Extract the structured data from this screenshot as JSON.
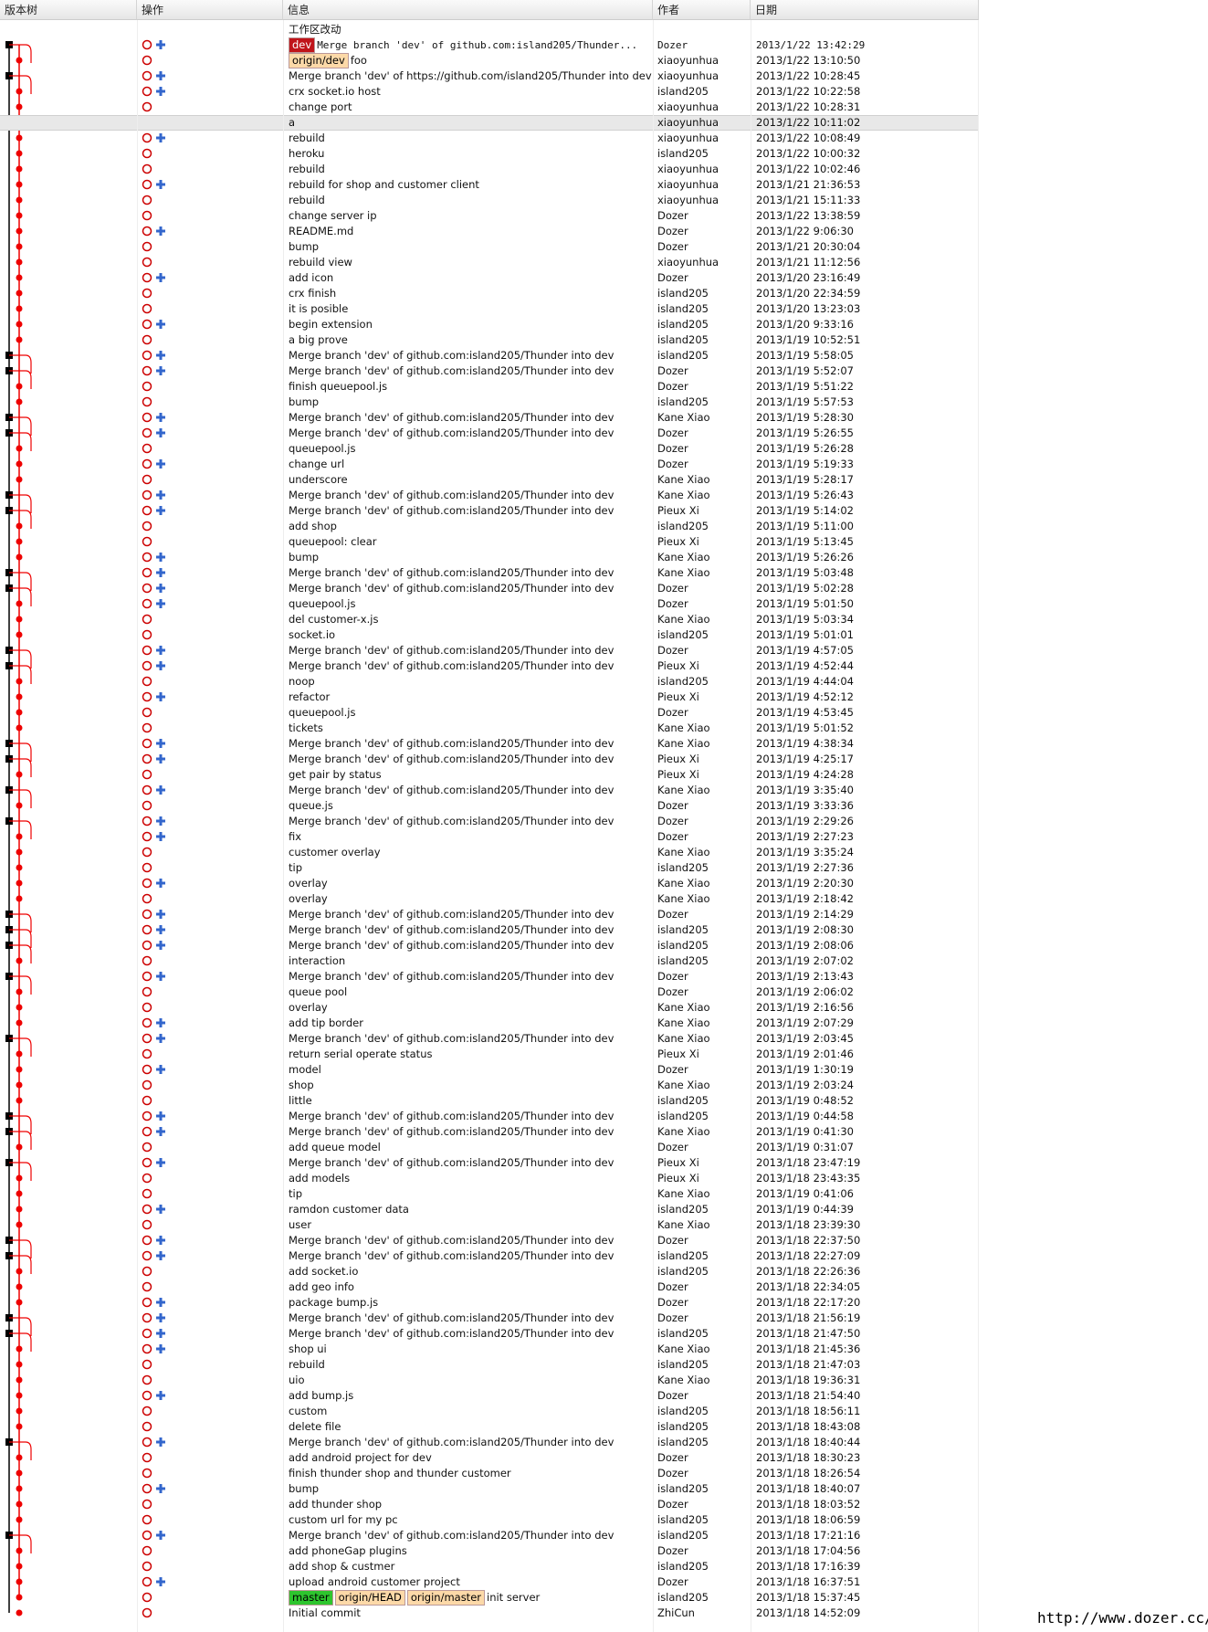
{
  "columns": [
    "版本树",
    "操作",
    "信息",
    "作者",
    "日期"
  ],
  "working_copy": "工作区改动",
  "rows": [
    {
      "refs": [
        "dev"
      ],
      "message": "Merge branch 'dev' of github.com:island205/Thunder...",
      "author": "Dozer",
      "date": "2013/1/22 13:42:29"
    },
    {
      "refs": [
        "origin/dev"
      ],
      "message": "foo",
      "author": "xiaoyunhua",
      "date": "2013/1/22 13:10:50"
    },
    {
      "message": "Merge branch 'dev' of https://github.com/island205/Thunder into dev",
      "author": "xiaoyunhua",
      "date": "2013/1/22 10:28:45"
    },
    {
      "message": "crx socket.io host",
      "author": "island205",
      "date": "2013/1/22 10:22:58"
    },
    {
      "message": "change port",
      "author": "xiaoyunhua",
      "date": "2013/1/22 10:28:31"
    },
    {
      "message": "a",
      "author": "xiaoyunhua",
      "date": "2013/1/22 10:11:02"
    },
    {
      "message": "rebuild",
      "author": "xiaoyunhua",
      "date": "2013/1/22 10:08:49"
    },
    {
      "message": "heroku",
      "author": "island205",
      "date": "2013/1/22 10:00:32"
    },
    {
      "message": "rebuild",
      "author": "xiaoyunhua",
      "date": "2013/1/22 10:02:46"
    },
    {
      "message": "rebuild for shop and customer client",
      "author": "xiaoyunhua",
      "date": "2013/1/21 21:36:53"
    },
    {
      "message": "rebuild",
      "author": "xiaoyunhua",
      "date": "2013/1/21 15:11:33"
    },
    {
      "message": "change server ip",
      "author": "Dozer",
      "date": "2013/1/22 13:38:59"
    },
    {
      "message": "README.md",
      "author": "Dozer",
      "date": "2013/1/22 9:06:30"
    },
    {
      "message": "bump",
      "author": "Dozer",
      "date": "2013/1/21 20:30:04"
    },
    {
      "message": "rebuild view",
      "author": "xiaoyunhua",
      "date": "2013/1/21 11:12:56"
    },
    {
      "message": "add icon",
      "author": "Dozer",
      "date": "2013/1/20 23:16:49"
    },
    {
      "message": "crx finish",
      "author": "island205",
      "date": "2013/1/20 22:34:59"
    },
    {
      "message": "it is posible",
      "author": "island205",
      "date": "2013/1/20 13:23:03"
    },
    {
      "message": "begin extension",
      "author": "island205",
      "date": "2013/1/20 9:33:16"
    },
    {
      "message": "a big prove",
      "author": "island205",
      "date": "2013/1/19 10:52:51"
    },
    {
      "message": "Merge branch 'dev' of github.com:island205/Thunder into dev",
      "author": "island205",
      "date": "2013/1/19 5:58:05"
    },
    {
      "message": "Merge branch 'dev' of github.com:island205/Thunder into dev",
      "author": "Dozer",
      "date": "2013/1/19 5:52:07"
    },
    {
      "message": "finish queuepool.js",
      "author": "Dozer",
      "date": "2013/1/19 5:51:22"
    },
    {
      "message": "bump",
      "author": "island205",
      "date": "2013/1/19 5:57:53"
    },
    {
      "message": "Merge branch 'dev' of github.com:island205/Thunder into dev",
      "author": "Kane Xiao",
      "date": "2013/1/19 5:28:30"
    },
    {
      "message": "Merge branch 'dev' of github.com:island205/Thunder into dev",
      "author": "Dozer",
      "date": "2013/1/19 5:26:55"
    },
    {
      "message": "queuepool.js",
      "author": "Dozer",
      "date": "2013/1/19 5:26:28"
    },
    {
      "message": "change url",
      "author": "Dozer",
      "date": "2013/1/19 5:19:33"
    },
    {
      "message": "underscore",
      "author": "Kane Xiao",
      "date": "2013/1/19 5:28:17"
    },
    {
      "message": "Merge branch 'dev' of github.com:island205/Thunder into dev",
      "author": "Kane Xiao",
      "date": "2013/1/19 5:26:43"
    },
    {
      "message": "Merge branch 'dev' of github.com:island205/Thunder into dev",
      "author": "Pieux Xi",
      "date": "2013/1/19 5:14:02"
    },
    {
      "message": "add shop",
      "author": "island205",
      "date": "2013/1/19 5:11:00"
    },
    {
      "message": "queuepool: clear",
      "author": "Pieux Xi",
      "date": "2013/1/19 5:13:45"
    },
    {
      "message": "bump",
      "author": "Kane Xiao",
      "date": "2013/1/19 5:26:26"
    },
    {
      "message": "Merge branch 'dev' of github.com:island205/Thunder into dev",
      "author": "Kane Xiao",
      "date": "2013/1/19 5:03:48"
    },
    {
      "message": "Merge branch 'dev' of github.com:island205/Thunder into dev",
      "author": "Dozer",
      "date": "2013/1/19 5:02:28"
    },
    {
      "message": "queuepool.js",
      "author": "Dozer",
      "date": "2013/1/19 5:01:50"
    },
    {
      "message": "del customer-x.js",
      "author": "Kane Xiao",
      "date": "2013/1/19 5:03:34"
    },
    {
      "message": "socket.io",
      "author": "island205",
      "date": "2013/1/19 5:01:01"
    },
    {
      "message": "Merge branch 'dev' of github.com:island205/Thunder into dev",
      "author": "Dozer",
      "date": "2013/1/19 4:57:05"
    },
    {
      "message": "Merge branch 'dev' of github.com:island205/Thunder into dev",
      "author": "Pieux Xi",
      "date": "2013/1/19 4:52:44"
    },
    {
      "message": "noop",
      "author": "island205",
      "date": "2013/1/19 4:44:04"
    },
    {
      "message": "refactor",
      "author": "Pieux Xi",
      "date": "2013/1/19 4:52:12"
    },
    {
      "message": "queuepool.js",
      "author": "Dozer",
      "date": "2013/1/19 4:53:45"
    },
    {
      "message": "tickets",
      "author": "Kane Xiao",
      "date": "2013/1/19 5:01:52"
    },
    {
      "message": "Merge branch 'dev' of github.com:island205/Thunder into dev",
      "author": "Kane Xiao",
      "date": "2013/1/19 4:38:34"
    },
    {
      "message": "Merge branch 'dev' of github.com:island205/Thunder into dev",
      "author": "Pieux Xi",
      "date": "2013/1/19 4:25:17"
    },
    {
      "message": "get pair by status",
      "author": "Pieux Xi",
      "date": "2013/1/19 4:24:28"
    },
    {
      "message": "Merge branch 'dev' of github.com:island205/Thunder into dev",
      "author": "Kane Xiao",
      "date": "2013/1/19 3:35:40"
    },
    {
      "message": "queue.js",
      "author": "Dozer",
      "date": "2013/1/19 3:33:36"
    },
    {
      "message": "Merge branch 'dev' of github.com:island205/Thunder into dev",
      "author": "Dozer",
      "date": "2013/1/19 2:29:26"
    },
    {
      "message": "fix",
      "author": "Dozer",
      "date": "2013/1/19 2:27:23"
    },
    {
      "message": "customer overlay",
      "author": "Kane Xiao",
      "date": "2013/1/19 3:35:24"
    },
    {
      "message": "tip",
      "author": "island205",
      "date": "2013/1/19 2:27:36"
    },
    {
      "message": "overlay",
      "author": "Kane Xiao",
      "date": "2013/1/19 2:20:30"
    },
    {
      "message": "overlay",
      "author": "Kane Xiao",
      "date": "2013/1/19 2:18:42"
    },
    {
      "message": "Merge branch 'dev' of github.com:island205/Thunder into dev",
      "author": "Dozer",
      "date": "2013/1/19 2:14:29"
    },
    {
      "message": "Merge branch 'dev' of github.com:island205/Thunder into dev",
      "author": "island205",
      "date": "2013/1/19 2:08:30"
    },
    {
      "message": "Merge branch 'dev' of github.com:island205/Thunder into dev",
      "author": "island205",
      "date": "2013/1/19 2:08:06"
    },
    {
      "message": "interaction",
      "author": "island205",
      "date": "2013/1/19 2:07:02"
    },
    {
      "message": "Merge branch 'dev' of github.com:island205/Thunder into dev",
      "author": "Dozer",
      "date": "2013/1/19 2:13:43"
    },
    {
      "message": "queue pool",
      "author": "Dozer",
      "date": "2013/1/19 2:06:02"
    },
    {
      "message": "overlay",
      "author": "Kane Xiao",
      "date": "2013/1/19 2:16:56"
    },
    {
      "message": "add tip border",
      "author": "Kane Xiao",
      "date": "2013/1/19 2:07:29"
    },
    {
      "message": "Merge branch 'dev' of github.com:island205/Thunder into dev",
      "author": "Kane Xiao",
      "date": "2013/1/19 2:03:45"
    },
    {
      "message": "return serial operate status",
      "author": "Pieux Xi",
      "date": "2013/1/19 2:01:46"
    },
    {
      "message": "model",
      "author": "Dozer",
      "date": "2013/1/19 1:30:19"
    },
    {
      "message": "shop",
      "author": "Kane Xiao",
      "date": "2013/1/19 2:03:24"
    },
    {
      "message": "little",
      "author": "island205",
      "date": "2013/1/19 0:48:52"
    },
    {
      "message": "Merge branch 'dev' of github.com:island205/Thunder into dev",
      "author": "island205",
      "date": "2013/1/19 0:44:58"
    },
    {
      "message": "Merge branch 'dev' of github.com:island205/Thunder into dev",
      "author": "Kane Xiao",
      "date": "2013/1/19 0:41:30"
    },
    {
      "message": "add queue model",
      "author": "Dozer",
      "date": "2013/1/19 0:31:07"
    },
    {
      "message": "Merge branch 'dev' of github.com:island205/Thunder into dev",
      "author": "Pieux Xi",
      "date": "2013/1/18 23:47:19"
    },
    {
      "message": "add models",
      "author": "Pieux Xi",
      "date": "2013/1/18 23:43:35"
    },
    {
      "message": "tip",
      "author": "Kane Xiao",
      "date": "2013/1/19 0:41:06"
    },
    {
      "message": "ramdon customer data",
      "author": "island205",
      "date": "2013/1/19 0:44:39"
    },
    {
      "message": "user",
      "author": "Kane Xiao",
      "date": "2013/1/18 23:39:30"
    },
    {
      "message": "Merge branch 'dev' of github.com:island205/Thunder into dev",
      "author": "Dozer",
      "date": "2013/1/18 22:37:50"
    },
    {
      "message": "Merge branch 'dev' of github.com:island205/Thunder into dev",
      "author": "island205",
      "date": "2013/1/18 22:27:09"
    },
    {
      "message": "add socket.io",
      "author": "island205",
      "date": "2013/1/18 22:26:36"
    },
    {
      "message": "add geo info",
      "author": "Dozer",
      "date": "2013/1/18 22:34:05"
    },
    {
      "message": "package bump.js",
      "author": "Dozer",
      "date": "2013/1/18 22:17:20"
    },
    {
      "message": "Merge branch 'dev' of github.com:island205/Thunder into dev",
      "author": "Dozer",
      "date": "2013/1/18 21:56:19"
    },
    {
      "message": "Merge branch 'dev' of github.com:island205/Thunder into dev",
      "author": "island205",
      "date": "2013/1/18 21:47:50"
    },
    {
      "message": "shop ui",
      "author": "Kane Xiao",
      "date": "2013/1/18 21:45:36"
    },
    {
      "message": "rebuild",
      "author": "island205",
      "date": "2013/1/18 21:47:03"
    },
    {
      "message": "uio",
      "author": "Kane Xiao",
      "date": "2013/1/18 19:36:31"
    },
    {
      "message": "add bump.js",
      "author": "Dozer",
      "date": "2013/1/18 21:54:40"
    },
    {
      "message": "custom",
      "author": "island205",
      "date": "2013/1/18 18:56:11"
    },
    {
      "message": "delete file",
      "author": "island205",
      "date": "2013/1/18 18:43:08"
    },
    {
      "message": "Merge branch 'dev' of github.com:island205/Thunder into dev",
      "author": "island205",
      "date": "2013/1/18 18:40:44"
    },
    {
      "message": "add android project for dev",
      "author": "Dozer",
      "date": "2013/1/18 18:30:23"
    },
    {
      "message": "finish thunder shop and thunder customer",
      "author": "Dozer",
      "date": "2013/1/18 18:26:54"
    },
    {
      "message": "bump",
      "author": "island205",
      "date": "2013/1/18 18:40:07"
    },
    {
      "message": "add thunder shop",
      "author": "Dozer",
      "date": "2013/1/18 18:03:52"
    },
    {
      "message": "custom url for my pc",
      "author": "island205",
      "date": "2013/1/18 18:06:59"
    },
    {
      "message": "Merge branch 'dev' of github.com:island205/Thunder into dev",
      "author": "island205",
      "date": "2013/1/18 17:21:16"
    },
    {
      "message": "add phoneGap plugins",
      "author": "Dozer",
      "date": "2013/1/18 17:04:56"
    },
    {
      "message": "add shop & custmer",
      "author": "island205",
      "date": "2013/1/18 17:16:39"
    },
    {
      "message": "upload android customer project",
      "author": "Dozer",
      "date": "2013/1/18 16:37:51"
    },
    {
      "refs": [
        "master",
        "origin/HEAD",
        "origin/master"
      ],
      "message": "init server",
      "author": "island205",
      "date": "2013/1/18 15:37:45"
    },
    {
      "message": "Initial commit",
      "author": "ZhiCun",
      "date": "2013/1/18 14:52:09"
    }
  ],
  "footer": "http://www.dozer.cc/"
}
